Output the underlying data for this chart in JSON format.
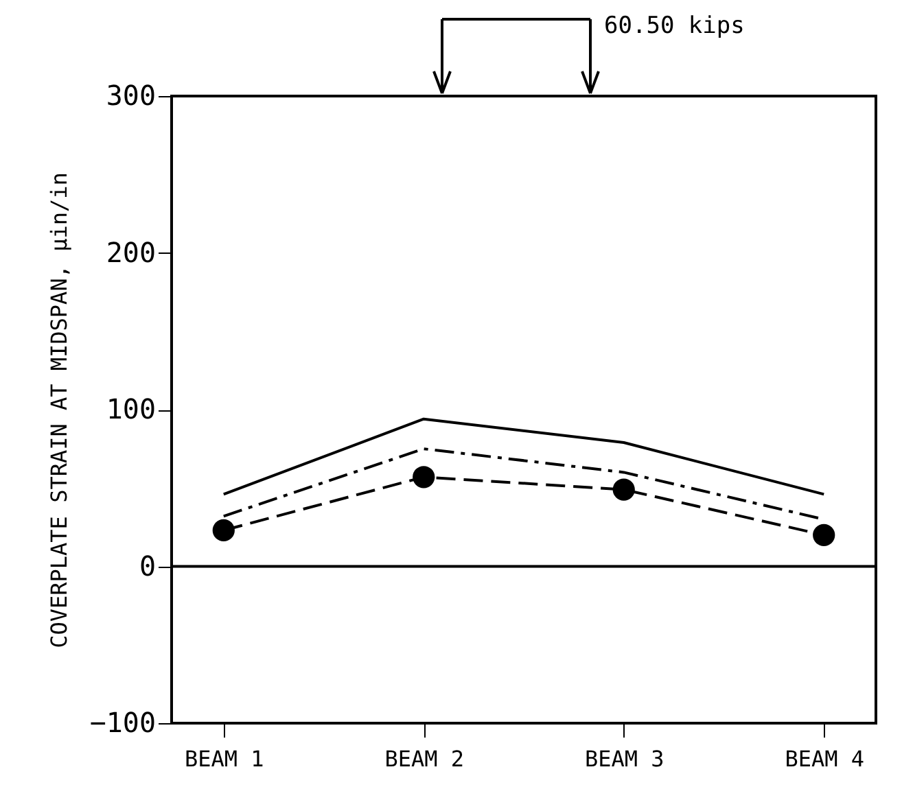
{
  "chart_data": {
    "type": "line",
    "ylabel": "COVERPLATE STRAIN AT MIDSPAN, μin/in",
    "categories": [
      "BEAM 1",
      "BEAM 2",
      "BEAM 3",
      "BEAM 4"
    ],
    "series": [
      {
        "color": "#000000",
        "values": [
          46,
          94,
          79,
          46
        ],
        "line_style": "solid",
        "marker": "none"
      },
      {
        "color": "#000000",
        "values": [
          32,
          75,
          60,
          30
        ],
        "line_style": "dotted",
        "marker": "none"
      },
      {
        "color": "#000000",
        "values": [
          23,
          57,
          49,
          20
        ],
        "line_style": "dashed",
        "marker": "circle"
      }
    ],
    "ylim": [
      -100,
      300
    ],
    "yticks": [
      -100,
      0,
      100,
      200,
      300
    ],
    "ref_lines": [
      {
        "axis": "y",
        "value": 0,
        "color": "#000000",
        "line_style": "solid"
      }
    ],
    "annotations": [
      "60.50 kips"
    ],
    "grid": false
  }
}
